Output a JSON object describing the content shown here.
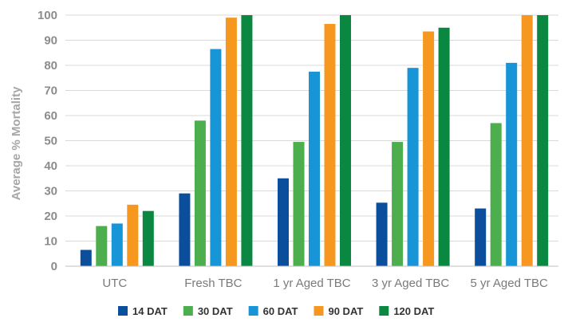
{
  "chart_data": {
    "type": "bar",
    "title": "",
    "xlabel": "",
    "ylabel": "Average % Mortality",
    "ylim": [
      0,
      100
    ],
    "yticks": [
      0,
      10,
      20,
      30,
      40,
      50,
      60,
      70,
      80,
      90,
      100
    ],
    "grid": true,
    "legend_position": "bottom",
    "categories": [
      "UTC",
      "Fresh TBC",
      "1 yr Aged TBC",
      "3 yr Aged TBC",
      "5 yr Aged TBC"
    ],
    "series": [
      {
        "name": "14 DAT",
        "color": "#0b4f9c",
        "values": [
          6.5,
          29,
          35,
          25.3,
          23
        ]
      },
      {
        "name": "30 DAT",
        "color": "#4cae4c",
        "values": [
          16,
          58,
          49.5,
          49.5,
          57
        ]
      },
      {
        "name": "60 DAT",
        "color": "#1795d6",
        "values": [
          17,
          86.5,
          77.5,
          79,
          81
        ]
      },
      {
        "name": "90 DAT",
        "color": "#f6981f",
        "values": [
          24.5,
          99,
          96.5,
          93.5,
          100
        ]
      },
      {
        "name": "120 DAT",
        "color": "#0a8740",
        "values": [
          22,
          100,
          100,
          95,
          100
        ]
      }
    ]
  }
}
